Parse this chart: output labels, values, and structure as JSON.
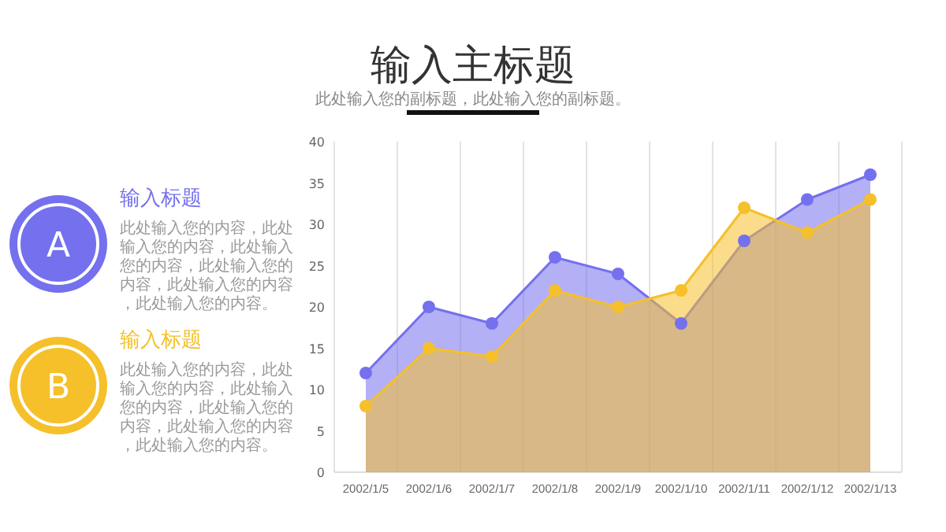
{
  "chart_data": {
    "type": "area",
    "title": "输入主标题",
    "subtitle": "此处输入您的副标题，此处输入您的副标题。",
    "categories": [
      "2002/1/5",
      "2002/1/6",
      "2002/1/7",
      "2002/1/8",
      "2002/1/9",
      "2002/1/10",
      "2002/1/11",
      "2002/1/12",
      "2002/1/13"
    ],
    "series": [
      {
        "name": "A",
        "color": "#7470ee",
        "values": [
          12,
          20,
          18,
          26,
          24,
          18,
          28,
          33,
          36
        ]
      },
      {
        "name": "B",
        "color": "#f5c02a",
        "values": [
          8,
          15,
          14,
          22,
          20,
          22,
          32,
          29,
          33
        ]
      }
    ],
    "ylim": [
      0,
      40
    ],
    "yticks": [
      0,
      5,
      10,
      15,
      20,
      25,
      30,
      35,
      40
    ],
    "grid": "x",
    "legend": "left",
    "marker": "circle",
    "annotations": [
      "输入标题",
      "此处输入您的内容，此处输入您的内容，此处输入您的内容，此处输入您的内容，此处输入您的内容，此处输入您的内容。",
      "输入标题",
      "此处输入您的内容，此处输入您的内容，此处输入您的内容，此处输入您的内容，此处输入您的内容，此处输入您的内容。"
    ]
  }
}
